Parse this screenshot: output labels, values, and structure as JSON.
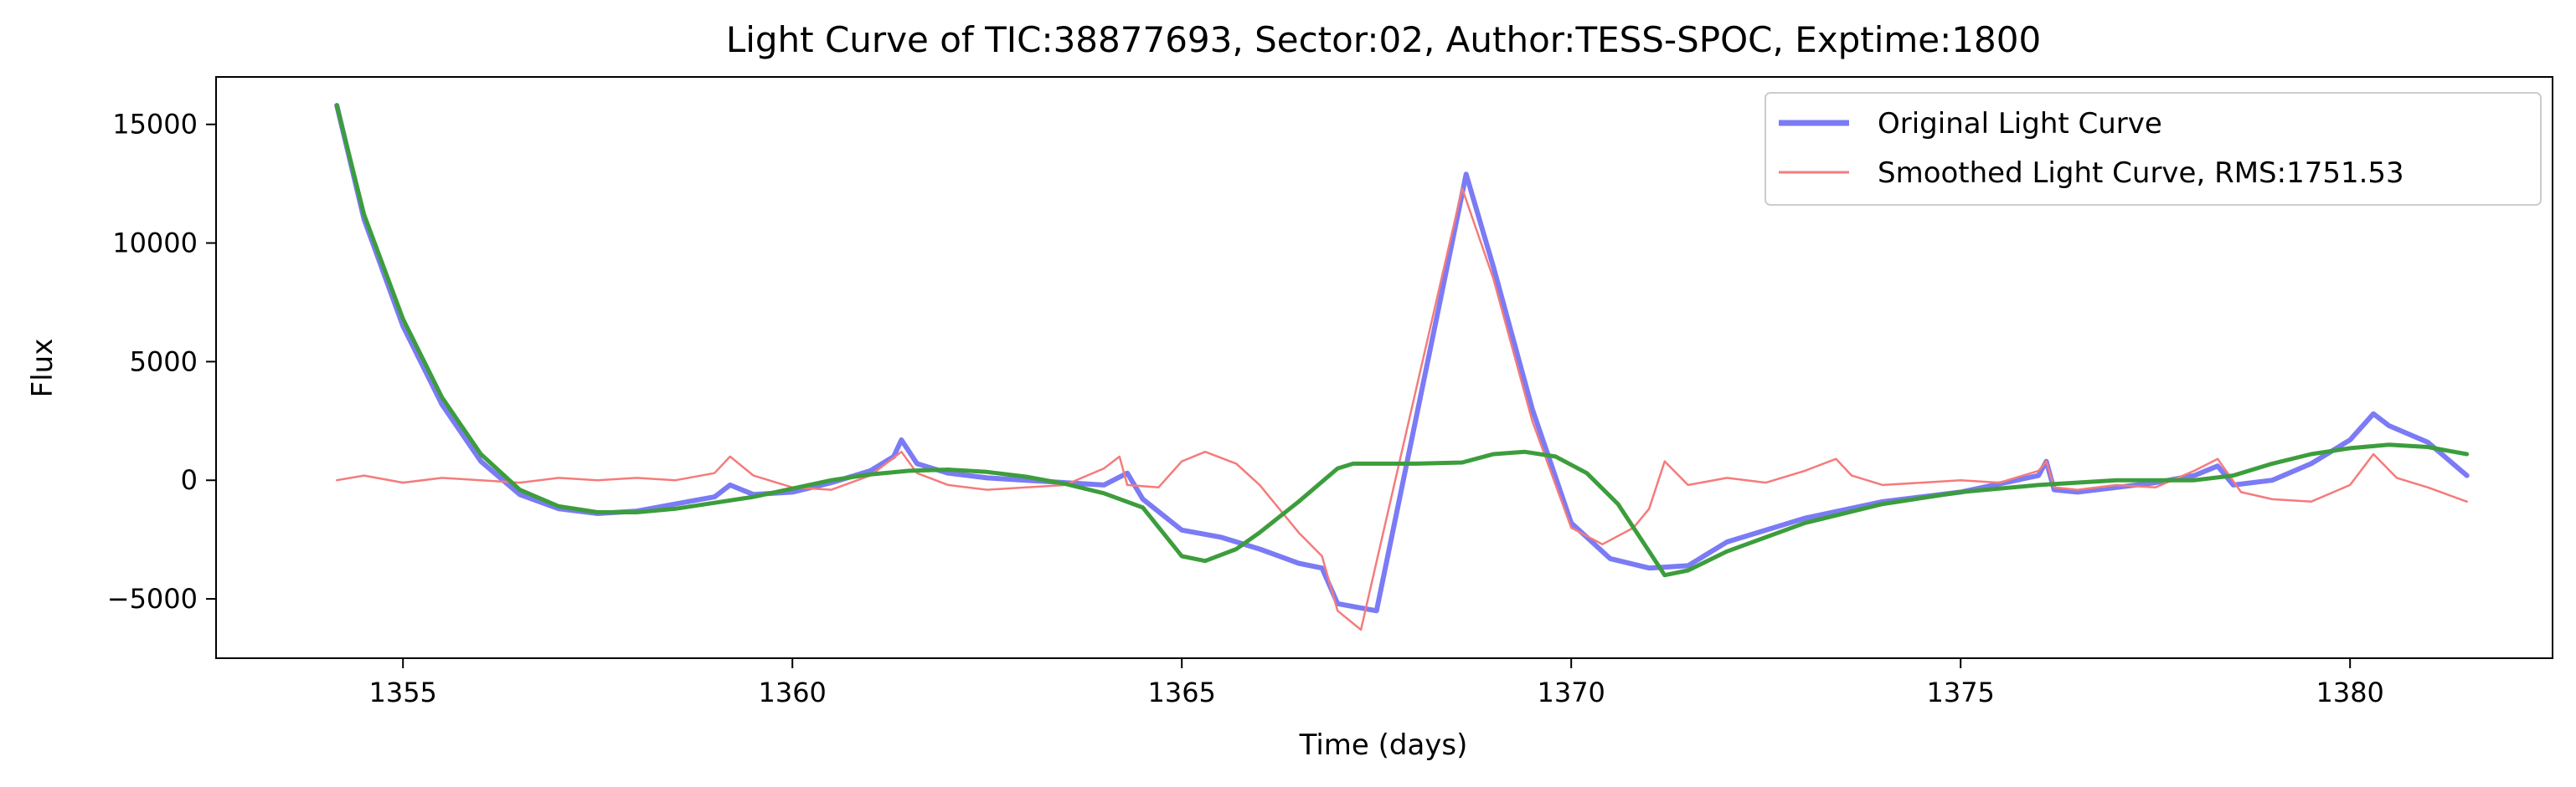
{
  "chart_data": {
    "type": "line",
    "title": "Light Curve of TIC:38877693, Sector:02, Author:TESS-SPOC, Exptime:1800",
    "xlabel": "Time (days)",
    "ylabel": "Flux",
    "xlim": [
      1352.6,
      1382.6
    ],
    "ylim": [
      -7500,
      17000
    ],
    "x_ticks": [
      1355,
      1360,
      1365,
      1370,
      1375,
      1380
    ],
    "y_ticks": [
      -5000,
      0,
      5000,
      10000,
      15000
    ],
    "y_tick_labels": [
      "−5000",
      "0",
      "5000",
      "10000",
      "15000"
    ],
    "grid": false,
    "legend_position": "top-right",
    "series": [
      {
        "name": "Original Light Curve",
        "color": "#7b7bf5",
        "style": "thick",
        "points": [
          [
            1354.15,
            15800
          ],
          [
            1354.5,
            11000
          ],
          [
            1355.0,
            6500
          ],
          [
            1355.5,
            3200
          ],
          [
            1356.0,
            800
          ],
          [
            1356.5,
            -600
          ],
          [
            1357.0,
            -1200
          ],
          [
            1357.5,
            -1400
          ],
          [
            1358.0,
            -1300
          ],
          [
            1358.5,
            -1000
          ],
          [
            1359.0,
            -700
          ],
          [
            1359.2,
            -200
          ],
          [
            1359.5,
            -600
          ],
          [
            1360.0,
            -500
          ],
          [
            1360.5,
            -100
          ],
          [
            1361.0,
            400
          ],
          [
            1361.3,
            1000
          ],
          [
            1361.4,
            1700
          ],
          [
            1361.6,
            700
          ],
          [
            1362.0,
            300
          ],
          [
            1362.5,
            100
          ],
          [
            1363.0,
            0
          ],
          [
            1363.5,
            -100
          ],
          [
            1364.0,
            -200
          ],
          [
            1364.3,
            300
          ],
          [
            1364.5,
            -800
          ],
          [
            1365.0,
            -2100
          ],
          [
            1365.5,
            -2400
          ],
          [
            1366.0,
            -2900
          ],
          [
            1366.5,
            -3500
          ],
          [
            1366.8,
            -3700
          ],
          [
            1367.0,
            -5200
          ],
          [
            1367.5,
            -5500
          ],
          [
            1368.65,
            12900
          ],
          [
            1369.0,
            9000
          ],
          [
            1369.5,
            3000
          ],
          [
            1370.0,
            -1800
          ],
          [
            1370.5,
            -3300
          ],
          [
            1371.0,
            -3700
          ],
          [
            1371.5,
            -3600
          ],
          [
            1372.0,
            -2600
          ],
          [
            1373.0,
            -1600
          ],
          [
            1374.0,
            -900
          ],
          [
            1375.0,
            -500
          ],
          [
            1376.0,
            200
          ],
          [
            1376.1,
            800
          ],
          [
            1376.2,
            -400
          ],
          [
            1376.5,
            -500
          ],
          [
            1377.0,
            -300
          ],
          [
            1377.5,
            -100
          ],
          [
            1378.0,
            200
          ],
          [
            1378.3,
            600
          ],
          [
            1378.5,
            -200
          ],
          [
            1379.0,
            0
          ],
          [
            1379.5,
            700
          ],
          [
            1380.0,
            1700
          ],
          [
            1380.3,
            2800
          ],
          [
            1380.5,
            2300
          ],
          [
            1381.0,
            1600
          ],
          [
            1381.5,
            200
          ]
        ]
      },
      {
        "name": "Smoothed Light Curve, RMS:1751.53",
        "color": "#f57b7b",
        "style": "thin",
        "points": [
          [
            1354.15,
            0
          ],
          [
            1354.5,
            200
          ],
          [
            1355.0,
            -100
          ],
          [
            1355.5,
            100
          ],
          [
            1356.0,
            0
          ],
          [
            1356.5,
            -100
          ],
          [
            1357.0,
            100
          ],
          [
            1357.5,
            0
          ],
          [
            1358.0,
            100
          ],
          [
            1358.5,
            0
          ],
          [
            1359.0,
            300
          ],
          [
            1359.2,
            1000
          ],
          [
            1359.5,
            200
          ],
          [
            1360.0,
            -300
          ],
          [
            1360.5,
            -400
          ],
          [
            1361.0,
            200
          ],
          [
            1361.4,
            1200
          ],
          [
            1361.6,
            300
          ],
          [
            1362.0,
            -200
          ],
          [
            1362.5,
            -400
          ],
          [
            1363.0,
            -300
          ],
          [
            1363.5,
            -200
          ],
          [
            1364.0,
            500
          ],
          [
            1364.2,
            1000
          ],
          [
            1364.3,
            -200
          ],
          [
            1364.7,
            -300
          ],
          [
            1365.0,
            800
          ],
          [
            1365.3,
            1200
          ],
          [
            1365.7,
            700
          ],
          [
            1366.0,
            -200
          ],
          [
            1366.5,
            -2200
          ],
          [
            1366.8,
            -3200
          ],
          [
            1367.0,
            -5500
          ],
          [
            1367.3,
            -6300
          ],
          [
            1368.6,
            12300
          ],
          [
            1369.0,
            8500
          ],
          [
            1369.5,
            2500
          ],
          [
            1370.0,
            -2000
          ],
          [
            1370.4,
            -2700
          ],
          [
            1370.8,
            -2000
          ],
          [
            1371.0,
            -1200
          ],
          [
            1371.2,
            800
          ],
          [
            1371.5,
            -200
          ],
          [
            1372.0,
            100
          ],
          [
            1372.5,
            -100
          ],
          [
            1373.0,
            400
          ],
          [
            1373.4,
            900
          ],
          [
            1373.6,
            200
          ],
          [
            1374.0,
            -200
          ],
          [
            1374.5,
            -100
          ],
          [
            1375.0,
            0
          ],
          [
            1375.5,
            -100
          ],
          [
            1376.0,
            400
          ],
          [
            1376.1,
            800
          ],
          [
            1376.2,
            -300
          ],
          [
            1376.5,
            -400
          ],
          [
            1377.0,
            -200
          ],
          [
            1377.5,
            -300
          ],
          [
            1378.0,
            400
          ],
          [
            1378.3,
            900
          ],
          [
            1378.6,
            -500
          ],
          [
            1379.0,
            -800
          ],
          [
            1379.5,
            -900
          ],
          [
            1380.0,
            -200
          ],
          [
            1380.3,
            1100
          ],
          [
            1380.6,
            100
          ],
          [
            1381.0,
            -300
          ],
          [
            1381.5,
            -900
          ]
        ]
      },
      {
        "name": "",
        "color": "#3c9d3c",
        "style": "medium",
        "points": [
          [
            1354.15,
            15800
          ],
          [
            1354.5,
            11200
          ],
          [
            1355.0,
            6800
          ],
          [
            1355.5,
            3500
          ],
          [
            1356.0,
            1100
          ],
          [
            1356.5,
            -400
          ],
          [
            1357.0,
            -1100
          ],
          [
            1357.5,
            -1350
          ],
          [
            1358.0,
            -1350
          ],
          [
            1358.5,
            -1200
          ],
          [
            1359.0,
            -950
          ],
          [
            1359.5,
            -700
          ],
          [
            1360.0,
            -350
          ],
          [
            1360.5,
            0
          ],
          [
            1361.0,
            250
          ],
          [
            1361.5,
            400
          ],
          [
            1362.0,
            450
          ],
          [
            1362.5,
            350
          ],
          [
            1363.0,
            150
          ],
          [
            1363.5,
            -150
          ],
          [
            1364.0,
            -550
          ],
          [
            1364.5,
            -1150
          ],
          [
            1365.0,
            -3200
          ],
          [
            1365.3,
            -3400
          ],
          [
            1365.7,
            -2900
          ],
          [
            1366.0,
            -2200
          ],
          [
            1366.5,
            -900
          ],
          [
            1367.0,
            500
          ],
          [
            1367.2,
            700
          ],
          [
            1368.0,
            700
          ],
          [
            1368.6,
            750
          ],
          [
            1369.0,
            1100
          ],
          [
            1369.4,
            1200
          ],
          [
            1369.8,
            1000
          ],
          [
            1370.2,
            300
          ],
          [
            1370.6,
            -1000
          ],
          [
            1371.0,
            -3000
          ],
          [
            1371.2,
            -4000
          ],
          [
            1371.5,
            -3800
          ],
          [
            1372.0,
            -3000
          ],
          [
            1373.0,
            -1800
          ],
          [
            1374.0,
            -1000
          ],
          [
            1375.0,
            -500
          ],
          [
            1376.0,
            -200
          ],
          [
            1377.0,
            0
          ],
          [
            1378.0,
            0
          ],
          [
            1378.5,
            200
          ],
          [
            1379.0,
            700
          ],
          [
            1379.5,
            1100
          ],
          [
            1380.0,
            1350
          ],
          [
            1380.5,
            1500
          ],
          [
            1381.0,
            1400
          ],
          [
            1381.5,
            1100
          ]
        ]
      }
    ]
  }
}
